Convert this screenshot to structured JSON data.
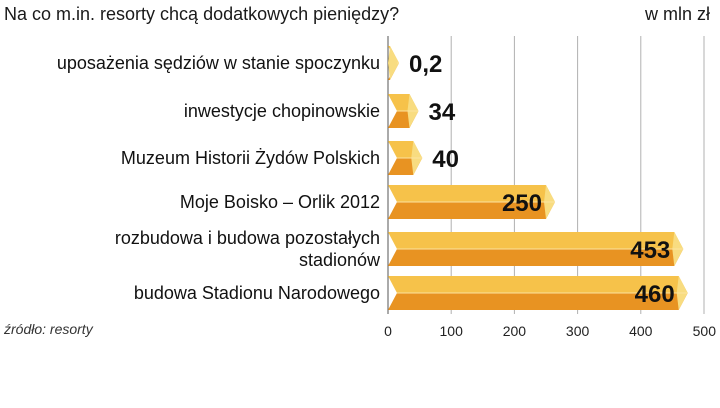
{
  "title": "Na co m.in. resorty chcą dodatkowych pieniędzy?",
  "unit": "w mln zł",
  "source": "źródło: resorty",
  "colors": {
    "bar_top": "#f6c24a",
    "bar_bottom": "#e89322",
    "bar_side": "#f8dc80",
    "grid": "#b0b0b0"
  },
  "chart_data": {
    "type": "bar",
    "orientation": "horizontal",
    "style": "3d-bars",
    "categories": [
      [
        "uposażenia sędziów w stanie spoczynku"
      ],
      [
        "inwestycje chopinowskie"
      ],
      [
        "Muzeum Historii Żydów Polskich"
      ],
      [
        "Moje Boisko – Orlik 2012"
      ],
      [
        "rozbudowa i budowa pozostałych",
        "stadionów"
      ],
      [
        "budowa Stadionu Narodowego"
      ]
    ],
    "values": [
      0.2,
      34,
      40,
      250,
      453,
      460
    ],
    "value_labels": [
      "0,2",
      "34",
      "40",
      "250",
      "453",
      "460"
    ],
    "xlim": [
      0,
      500
    ],
    "xticks": [
      0,
      100,
      200,
      300,
      400,
      500
    ],
    "grid": "vertical"
  }
}
